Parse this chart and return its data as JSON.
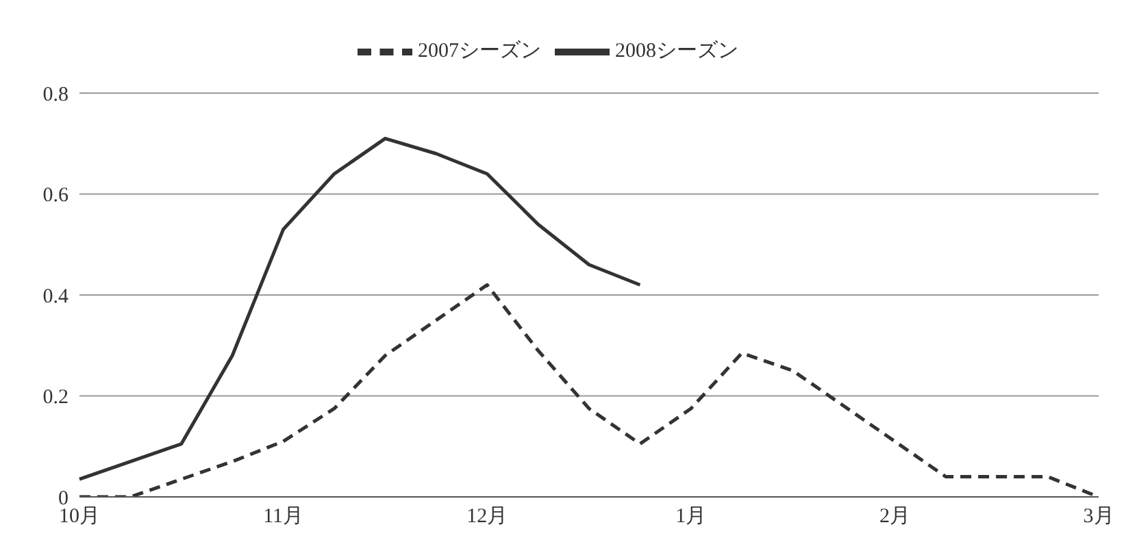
{
  "chart_data": {
    "type": "line",
    "categories": [
      "10月",
      null,
      null,
      null,
      "11月",
      null,
      null,
      null,
      "12月",
      null,
      null,
      null,
      "1月",
      null,
      null,
      null,
      "2月",
      null,
      null,
      null,
      "3月"
    ],
    "series": [
      {
        "name": "2008シーズン",
        "color": "#333333",
        "line_style": "solid",
        "values": [
          0.035,
          0.07,
          0.105,
          0.28,
          0.53,
          0.64,
          0.71,
          0.68,
          0.64,
          0.54,
          0.46,
          0.42,
          null,
          null,
          null,
          null,
          null,
          null,
          null,
          null,
          null
        ]
      },
      {
        "name": "2007シーズン",
        "color": "#333333",
        "line_style": "dashed",
        "values": [
          0,
          0,
          0.035,
          0.07,
          0.11,
          0.175,
          0.28,
          0.35,
          0.42,
          0.29,
          0.175,
          0.105,
          0.175,
          0.285,
          0.25,
          0.18,
          0.11,
          0.04,
          0.04,
          0.04,
          0
        ]
      }
    ],
    "ylim": [
      0,
      0.8
    ],
    "yticks": [
      0,
      0.2,
      0.4,
      0.6,
      0.8
    ],
    "grid": "y",
    "legend": "top",
    "marker": "none"
  }
}
